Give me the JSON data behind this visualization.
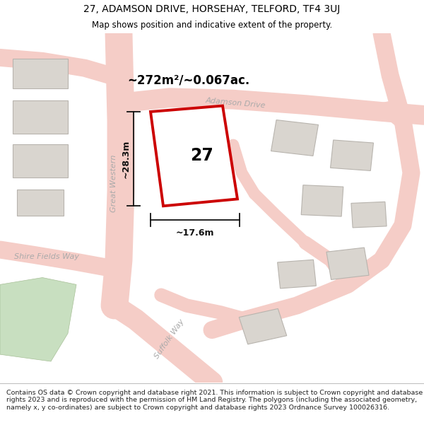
{
  "title_line1": "27, ADAMSON DRIVE, HORSEHAY, TELFORD, TF4 3UJ",
  "title_line2": "Map shows position and indicative extent of the property.",
  "footer_text": "Contains OS data © Crown copyright and database right 2021. This information is subject to Crown copyright and database rights 2023 and is reproduced with the permission of HM Land Registry. The polygons (including the associated geometry, namely x, y co-ordinates) are subject to Crown copyright and database rights 2023 Ordnance Survey 100026316.",
  "map_bg": "#f2f0ec",
  "road_fill": "#f5cdc7",
  "road_edge": "#e8a898",
  "building_fill": "#d9d5cf",
  "building_edge": "#b8b4ae",
  "highlight_fill": "#ffffff",
  "highlight_edge": "#cc0000",
  "green_fill": "#c8dfc0",
  "green_edge": "#a8c098",
  "street_color": "#aaaaaa",
  "measure_color": "#111111",
  "area_text": "~272m²/~0.067ac.",
  "width_text": "~17.6m",
  "height_text": "~28.3m",
  "plot_number": "27",
  "figsize": [
    6.0,
    6.25
  ],
  "dpi": 100,
  "title_fontsize": 10,
  "subtitle_fontsize": 8.5,
  "footer_fontsize": 6.8
}
